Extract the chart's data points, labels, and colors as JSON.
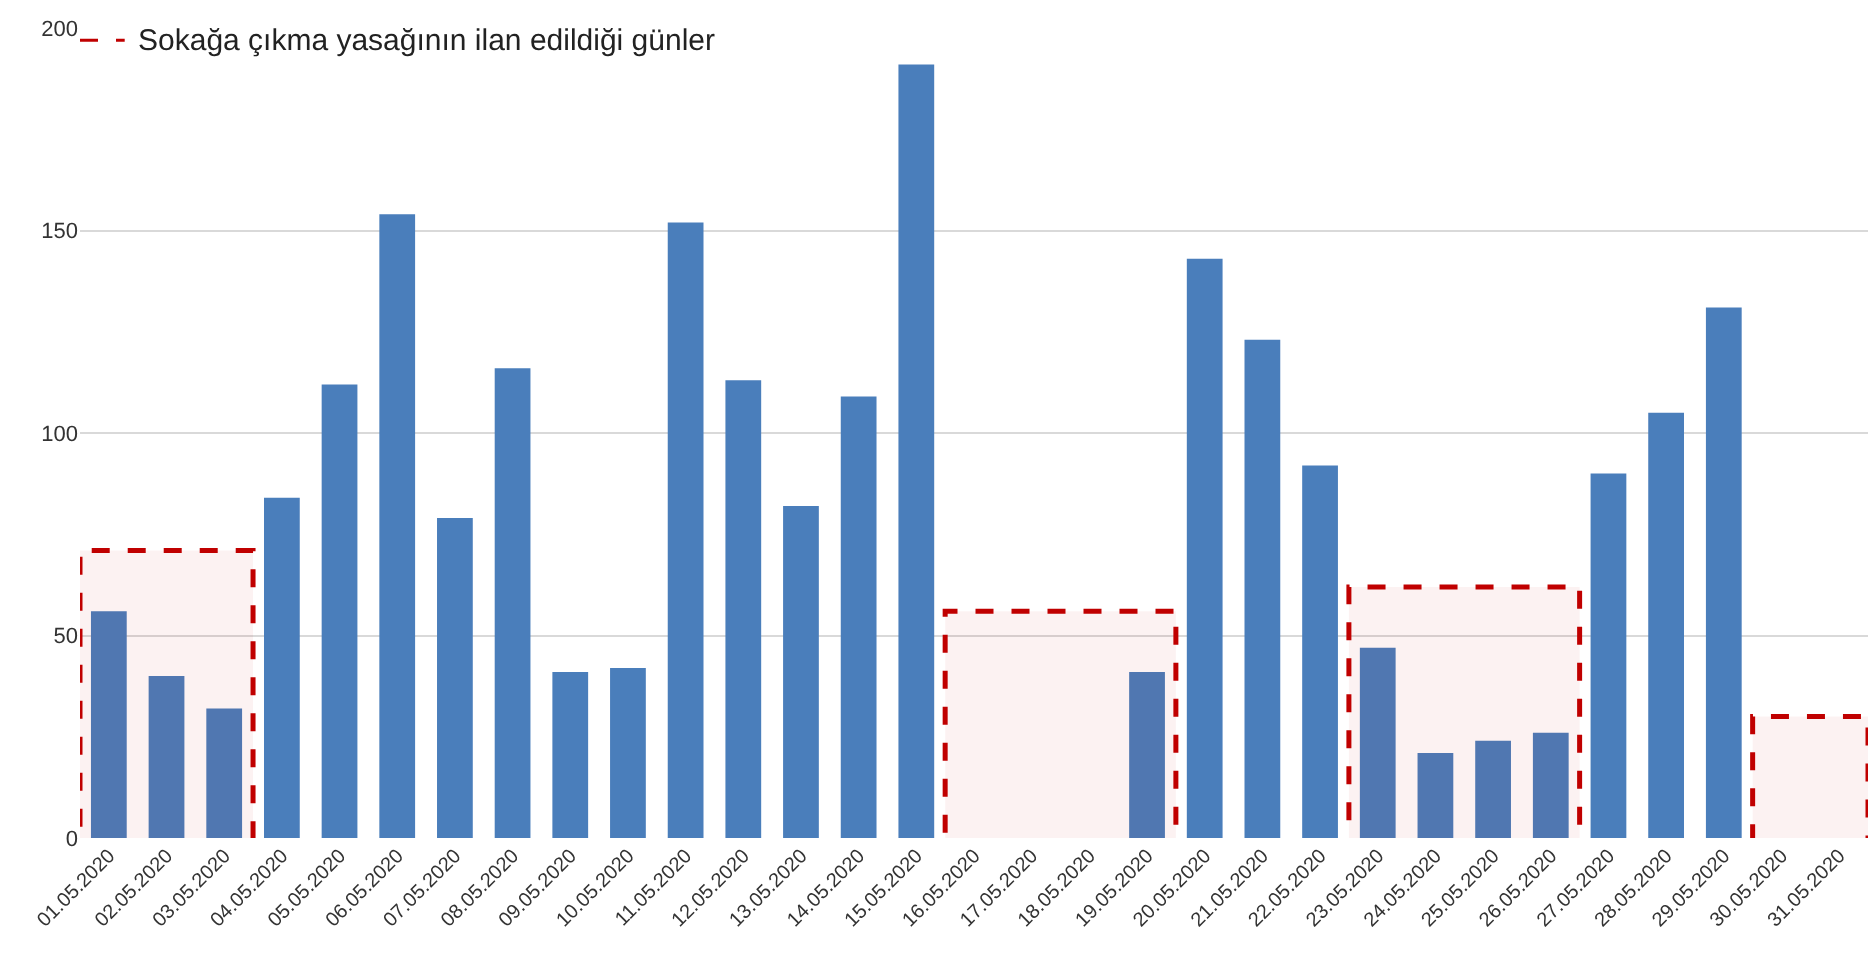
{
  "chart_data": {
    "type": "bar",
    "categories": [
      "01.05.2020",
      "02.05.2020",
      "03.05.2020",
      "04.05.2020",
      "05.05.2020",
      "06.05.2020",
      "07.05.2020",
      "08.05.2020",
      "09.05.2020",
      "10.05.2020",
      "11.05.2020",
      "12.05.2020",
      "13.05.2020",
      "14.05.2020",
      "15.05.2020",
      "16.05.2020",
      "17.05.2020",
      "18.05.2020",
      "19.05.2020",
      "20.05.2020",
      "21.05.2020",
      "22.05.2020",
      "23.05.2020",
      "24.05.2020",
      "25.05.2020",
      "26.05.2020",
      "27.05.2020",
      "28.05.2020",
      "29.05.2020",
      "30.05.2020",
      "31.05.2020"
    ],
    "values": [
      56,
      40,
      32,
      84,
      112,
      154,
      79,
      116,
      41,
      42,
      152,
      113,
      82,
      109,
      191,
      0,
      0,
      0,
      41,
      143,
      123,
      92,
      47,
      21,
      24,
      26,
      90,
      105,
      131,
      0,
      0
    ],
    "color": "#4a7ebb",
    "ylim": [
      0,
      200
    ],
    "yticks": [
      0,
      50,
      100,
      150,
      200
    ],
    "grid": "y",
    "bands": [
      {
        "axis": "x",
        "from": "01.05.2020",
        "to": "03.05.2020",
        "label": "Sokağa çıkma yasağının ilan edildiği günler",
        "color": "#c00000"
      },
      {
        "axis": "x",
        "from": "16.05.2020",
        "to": "19.05.2020",
        "color": "#c00000"
      },
      {
        "axis": "x",
        "from": "23.05.2020",
        "to": "26.05.2020",
        "color": "#c00000"
      },
      {
        "axis": "x",
        "from": "30.05.2020",
        "to": "31.05.2020",
        "color": "#c00000"
      }
    ]
  }
}
